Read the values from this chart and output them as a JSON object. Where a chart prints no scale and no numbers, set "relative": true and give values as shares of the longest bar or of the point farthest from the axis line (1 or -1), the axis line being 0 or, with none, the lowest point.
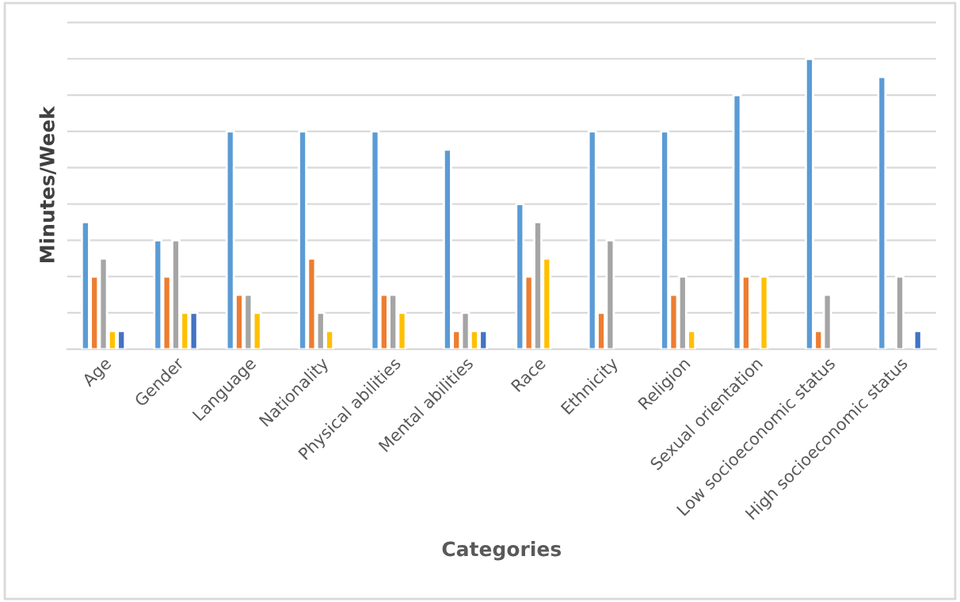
{
  "chart_data": {
    "type": "bar",
    "relative": true,
    "xlabel": "Categories",
    "ylabel": "Minutes/Week",
    "grid": "y",
    "legend": false,
    "categories": [
      "Age",
      "Gender",
      "Language",
      "Nationality",
      "Physical abilities",
      "Mental abilities",
      "Race",
      "Ethnicity",
      "Religion",
      "Sexual orientation",
      "Low socioeconomic status",
      "High socioeconomic status"
    ],
    "series": [
      {
        "color": "#5b9bd5",
        "values": [
          0.4375,
          0.375,
          0.75,
          0.75,
          0.75,
          0.6875,
          0.5,
          0.75,
          0.75,
          0.875,
          1,
          0.9375
        ]
      },
      {
        "color": "#ed7d31",
        "values": [
          0.25,
          0.25,
          0.1875,
          0.3125,
          0.1875,
          0.0625,
          0.25,
          0.125,
          0.1875,
          0.25,
          0.0625,
          null
        ]
      },
      {
        "color": "#a5a5a5",
        "values": [
          0.3125,
          0.375,
          0.1875,
          0.125,
          0.1875,
          0.125,
          0.4375,
          0.375,
          0.25,
          null,
          0.1875,
          0.25
        ]
      },
      {
        "color": "#ffc000",
        "values": [
          0.0625,
          0.125,
          0.125,
          0.0625,
          0.125,
          0.0625,
          0.3125,
          null,
          0.0625,
          0.25,
          null,
          null
        ]
      },
      {
        "color": "#4472c4",
        "values": [
          0.0625,
          0.125,
          null,
          null,
          null,
          0.0625,
          null,
          null,
          null,
          null,
          null,
          0.0625
        ]
      }
    ]
  }
}
